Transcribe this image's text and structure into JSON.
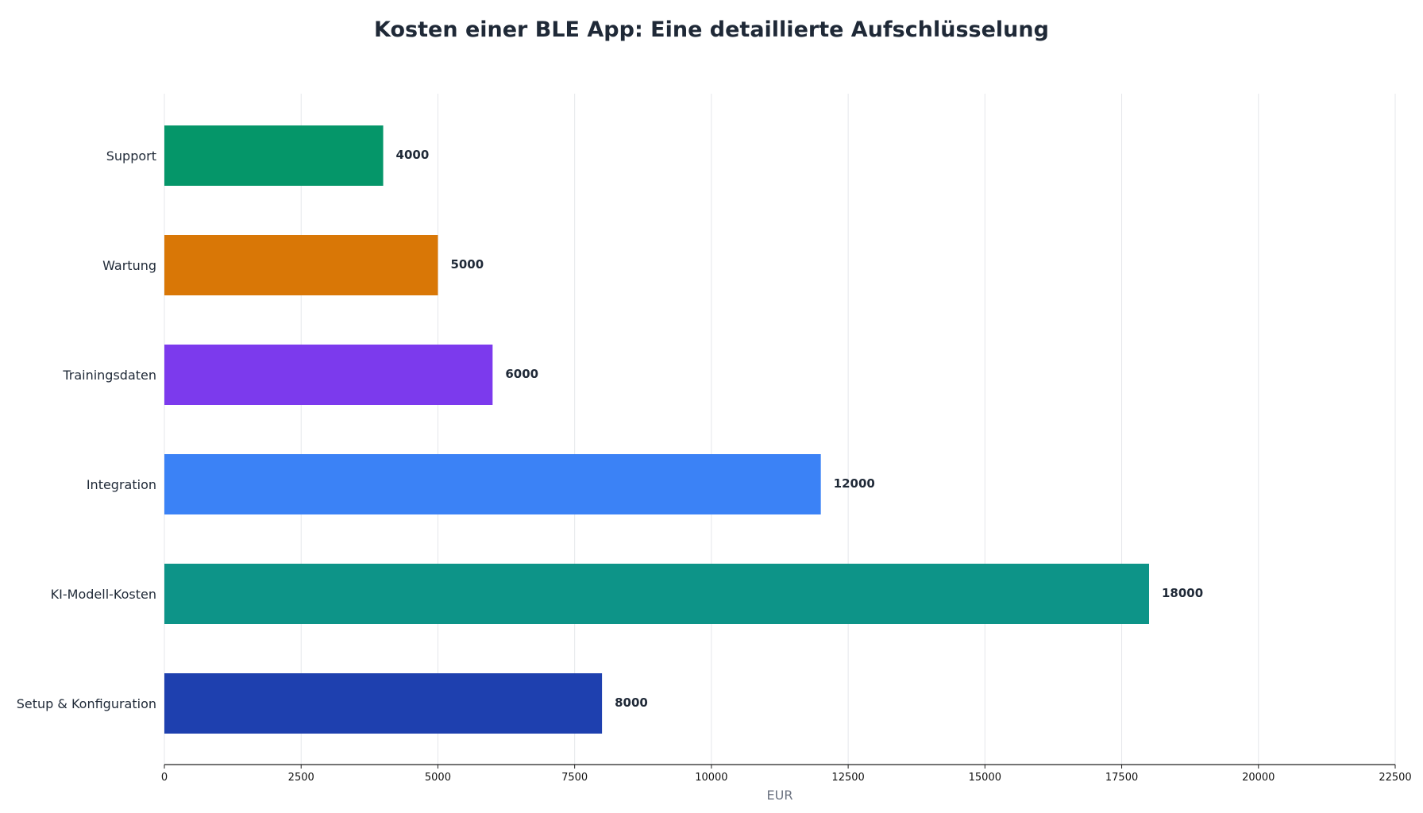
{
  "chart_data": {
    "type": "bar",
    "orientation": "horizontal",
    "title": "Kosten einer BLE App: Eine detaillierte Aufschlüsselung",
    "xlabel": "EUR",
    "ylabel": "",
    "xlim": [
      0,
      22500
    ],
    "xticks": [
      0,
      2500,
      5000,
      7500,
      10000,
      12500,
      15000,
      17500,
      20000,
      22500
    ],
    "grid": "vertical",
    "categories": [
      "Setup & Konfiguration",
      "KI-Modell-Kosten",
      "Integration",
      "Trainingsdaten",
      "Wartung",
      "Support"
    ],
    "values": [
      8000,
      18000,
      12000,
      6000,
      5000,
      4000
    ],
    "colors": [
      "#1e40af",
      "#0d9488",
      "#3b82f6",
      "#7c3aed",
      "#d97706",
      "#059669"
    ],
    "data_labels": [
      "8000",
      "18000",
      "12000",
      "6000",
      "5000",
      "4000"
    ]
  },
  "colors": {
    "grid": "#e5e7eb",
    "axis": "#222222",
    "text": "#1f2937"
  }
}
